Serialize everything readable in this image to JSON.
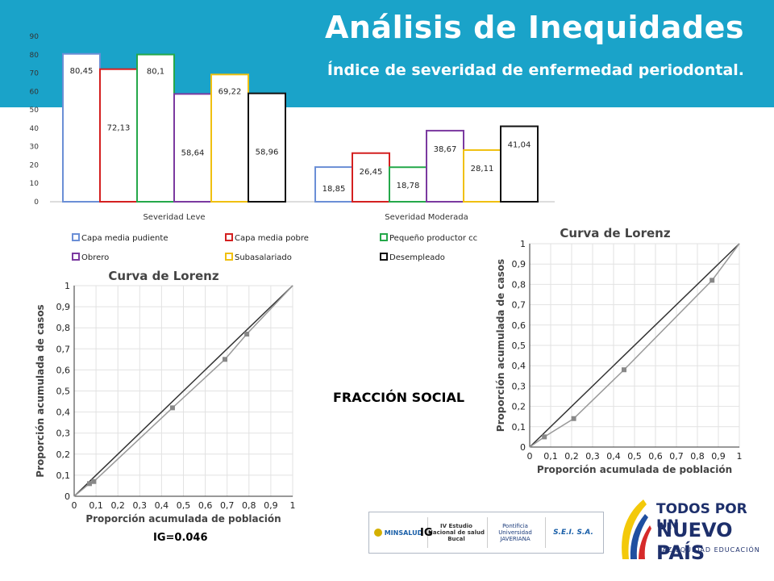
{
  "header": {
    "title": "Análisis de Inequidades",
    "subtitle": "Índice de severidad de enfermedad periodontal."
  },
  "texts": {
    "fraccion": "FRACCIÓN SOCIAL",
    "ig_left": "IG=0.046",
    "ig_right_partial": "IG",
    "logos": [
      "MINSALUD",
      "IV Estudio Nacional de salud Bucal",
      "Pontificia Universidad JAVERIANA",
      "S.E.I. S.A."
    ],
    "brand_line1": "TODOS POR UN",
    "brand_line2": "NUEVO PAÍS",
    "brand_line3": "PAZ  EQUIDAD  EDUCACIÓN"
  },
  "colors": {
    "header": "#1aa3c9",
    "series": [
      "#6b8fd6",
      "#d42020",
      "#25a84a",
      "#7b3aa0",
      "#f0c010",
      "#111111"
    ]
  },
  "chart_data": [
    {
      "type": "bar",
      "categories": [
        "Severidad Leve",
        "Severidad Moderada"
      ],
      "series": [
        {
          "name": "Capa media pudiente",
          "values": [
            80.45,
            18.85
          ],
          "labels": [
            "80,45",
            "18,85"
          ]
        },
        {
          "name": "Capa media pobre",
          "values": [
            72.13,
            26.45
          ],
          "labels": [
            "72,13",
            "26,45"
          ]
        },
        {
          "name": "Pequeño productor cc",
          "values": [
            80.1,
            18.78
          ],
          "labels": [
            "80,1",
            "18,78"
          ]
        },
        {
          "name": "Obrero",
          "values": [
            58.64,
            38.67
          ],
          "labels": [
            "58,64",
            "38,67"
          ]
        },
        {
          "name": "Subasalariado",
          "values": [
            69.22,
            28.11
          ],
          "labels": [
            "69,22",
            "28,11"
          ]
        },
        {
          "name": "Desempleado",
          "values": [
            58.96,
            41.04
          ],
          "labels": [
            "58,96",
            "41,04"
          ]
        }
      ],
      "ylim": [
        0,
        90
      ],
      "yticks": [
        "0",
        "10",
        "20",
        "30",
        "40",
        "50",
        "60",
        "70",
        "80",
        "90"
      ],
      "legend": "bottom"
    },
    {
      "type": "line",
      "title": "Curva de Lorenz",
      "xlabel": "Proporción acumulada de población",
      "ylabel": "Proporción acumulada de casos",
      "xlim": [
        0,
        1
      ],
      "ylim": [
        0,
        1
      ],
      "xticks": [
        "0",
        "0,1",
        "0,2",
        "0,3",
        "0,4",
        "0,5",
        "0,6",
        "0,7",
        "0,8",
        "0,9",
        "1"
      ],
      "yticks": [
        "0",
        "0,1",
        "0,2",
        "0,3",
        "0,4",
        "0,5",
        "0,6",
        "0,7",
        "0,8",
        "0,9",
        "1"
      ],
      "grid": true,
      "series": [
        {
          "x": [
            0,
            1
          ],
          "y": [
            0,
            1
          ]
        },
        {
          "x": [
            0,
            0.07,
            0.09,
            0.45,
            0.69,
            0.79,
            1
          ],
          "y": [
            0,
            0.06,
            0.07,
            0.42,
            0.65,
            0.77,
            1
          ]
        }
      ]
    },
    {
      "type": "line",
      "title": "Curva de Lorenz",
      "xlabel": "Proporción acumulada de población",
      "ylabel": "Proporción acumulada de casos",
      "xlim": [
        0,
        1
      ],
      "ylim": [
        0,
        1
      ],
      "xticks": [
        "0",
        "0,1",
        "0,2",
        "0,3",
        "0,4",
        "0,5",
        "0,6",
        "0,7",
        "0,8",
        "0,9",
        "1"
      ],
      "yticks": [
        "0",
        "0,1",
        "0,2",
        "0,3",
        "0,4",
        "0,5",
        "0,6",
        "0,7",
        "0,8",
        "0,9",
        "1"
      ],
      "grid": true,
      "series": [
        {
          "x": [
            0,
            1
          ],
          "y": [
            0,
            1
          ]
        },
        {
          "x": [
            0,
            0.07,
            0.21,
            0.45,
            0.87,
            1
          ],
          "y": [
            0,
            0.05,
            0.14,
            0.38,
            0.82,
            1
          ]
        }
      ]
    }
  ]
}
